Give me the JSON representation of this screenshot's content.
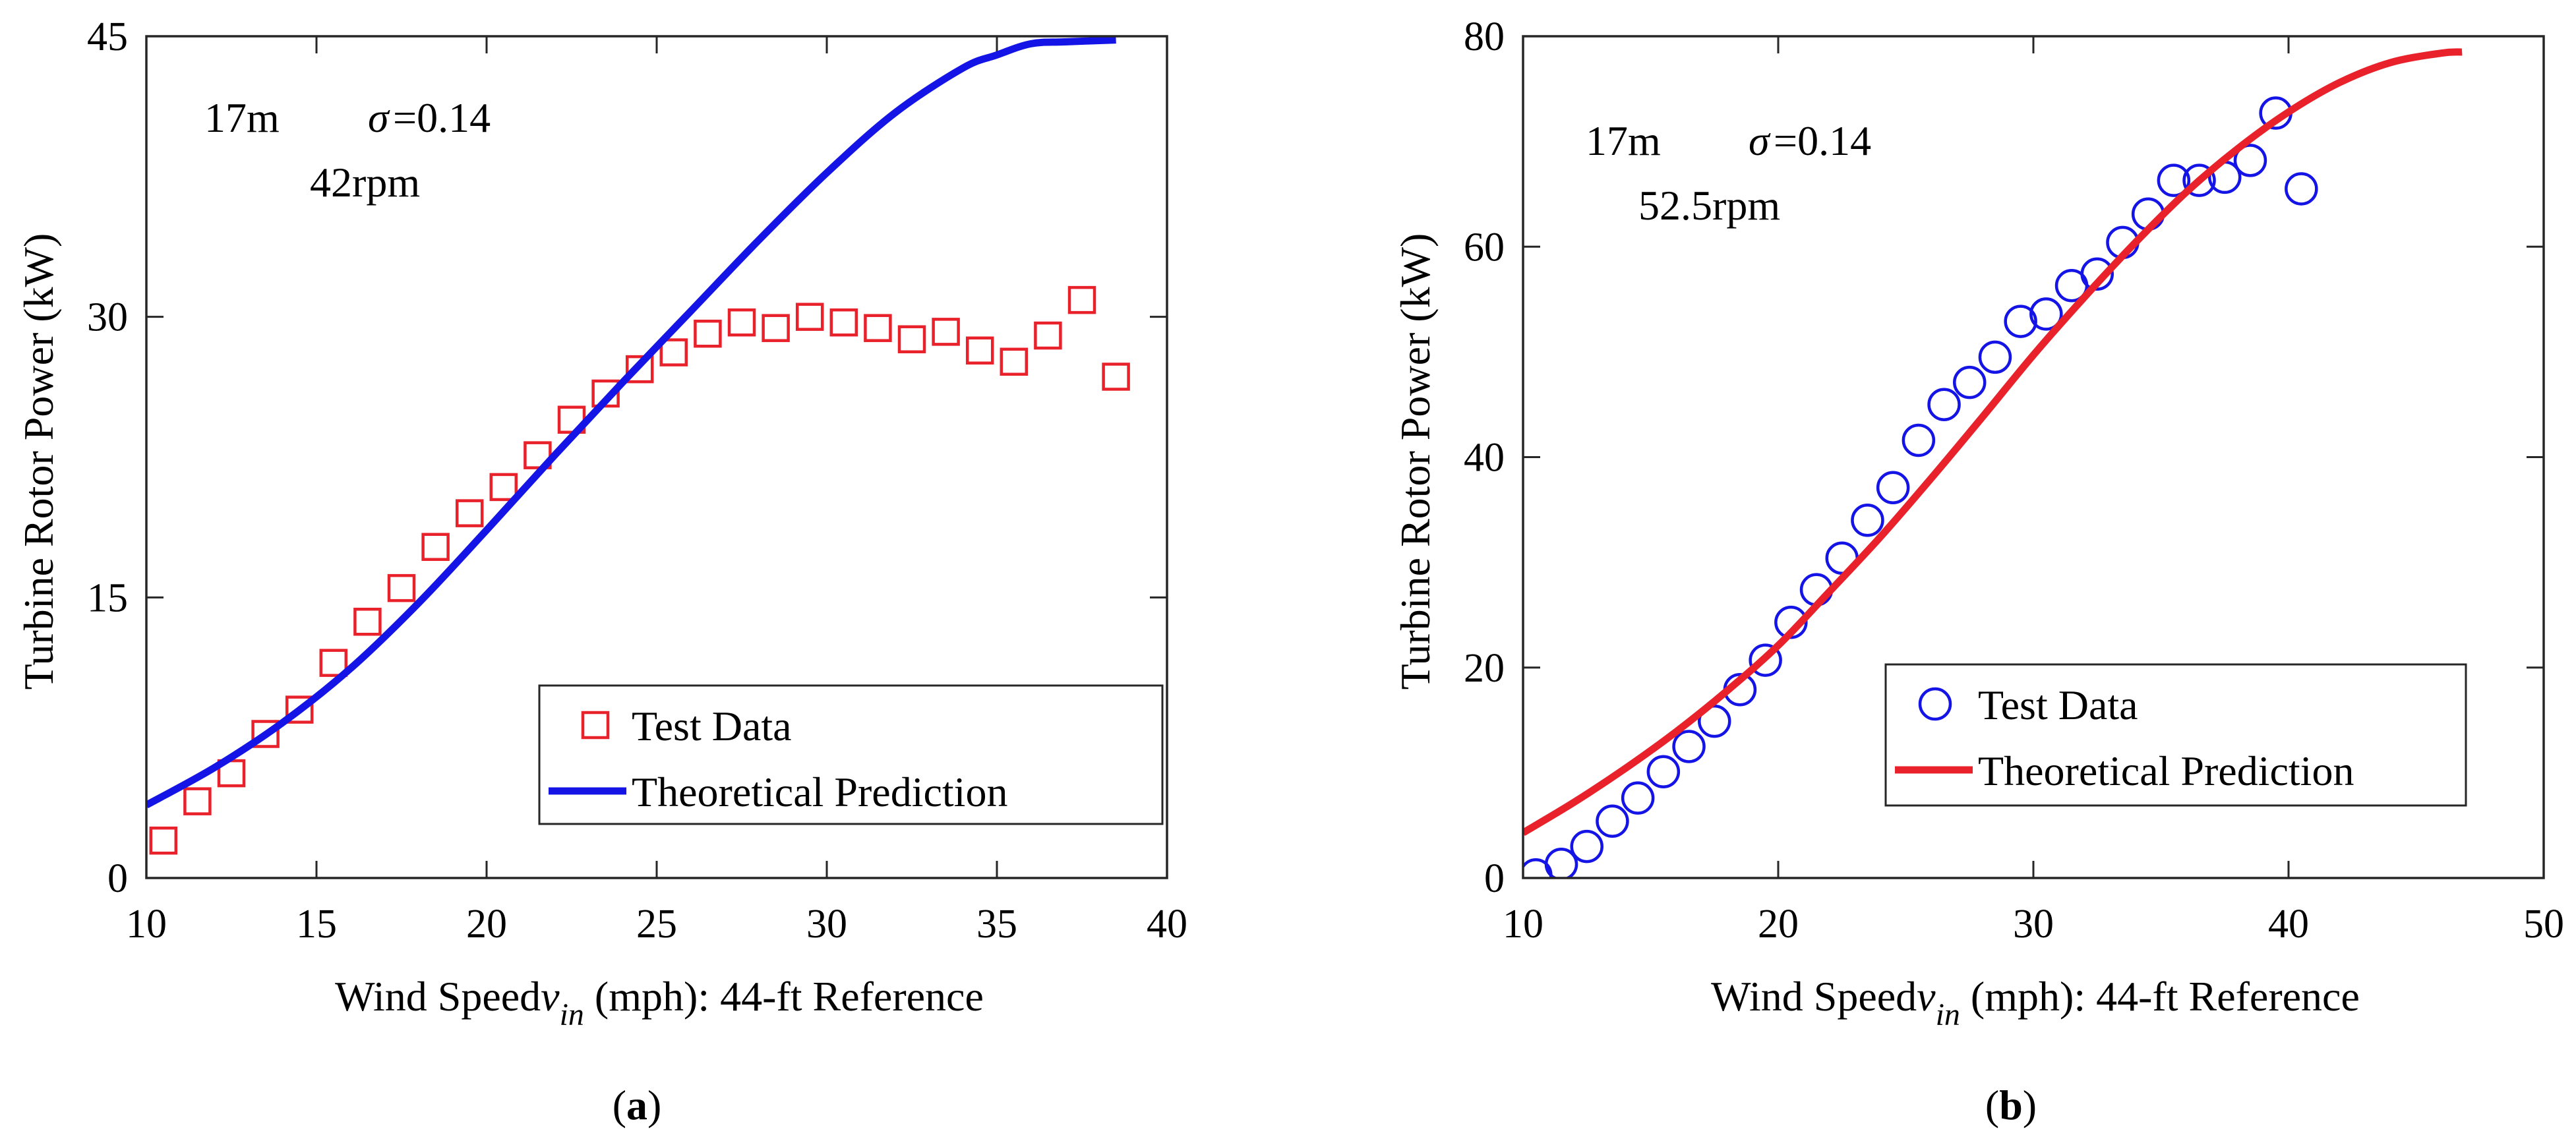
{
  "chart_data": [
    {
      "type": "scatter",
      "panel_label": "a",
      "xlabel_prefix": "Wind Speed",
      "xlabel_var": "v",
      "xlabel_sub": "in",
      "xlabel_suffix": " (mph): 44-ft Reference",
      "ylabel": "Turbine Rotor Power (kW)",
      "xlim": [
        10,
        40
      ],
      "ylim": [
        0,
        45
      ],
      "xticks": [
        10,
        15,
        20,
        25,
        30,
        35,
        40
      ],
      "yticks": [
        0,
        15,
        30,
        45
      ],
      "annotations": {
        "diameter": "17m",
        "sigma_symbol": "σ",
        "sigma_value": "=0.14",
        "rpm": "42rpm"
      },
      "legend": {
        "position": "bottom-right",
        "entries": [
          "Test Data",
          "Theoretical Prediction"
        ]
      },
      "series": [
        {
          "name": "Test Data",
          "kind": "markers",
          "marker": "square",
          "color": "#e8212b",
          "x": [
            10.5,
            11.5,
            12.5,
            13.5,
            14.5,
            15.5,
            16.5,
            17.5,
            18.5,
            19.5,
            20.5,
            21.5,
            22.5,
            23.5,
            24.5,
            25.5,
            26.5,
            27.5,
            28.5,
            29.5,
            30.5,
            31.5,
            32.5,
            33.5,
            34.5,
            35.5,
            36.5,
            37.5,
            38.5
          ],
          "y": [
            2.0,
            4.1,
            5.6,
            7.7,
            9.0,
            11.5,
            13.7,
            15.5,
            17.7,
            19.5,
            20.9,
            22.6,
            24.5,
            25.9,
            27.2,
            28.1,
            29.1,
            29.7,
            29.4,
            30.0,
            29.7,
            29.4,
            28.8,
            29.2,
            28.2,
            27.6,
            29.0,
            30.9,
            26.8
          ]
        },
        {
          "name": "Theoretical Prediction",
          "kind": "line",
          "color": "#1414e6",
          "x": [
            10,
            12,
            14,
            16,
            18,
            20,
            22,
            24,
            26,
            28,
            30,
            32,
            34,
            35,
            36,
            37,
            38.5
          ],
          "y": [
            3.9,
            5.9,
            8.3,
            11.2,
            14.7,
            18.6,
            22.6,
            26.5,
            30.3,
            34.1,
            37.7,
            40.9,
            43.3,
            44.0,
            44.6,
            44.7,
            44.8
          ]
        }
      ]
    },
    {
      "type": "scatter",
      "panel_label": "b",
      "xlabel_prefix": "Wind Speed",
      "xlabel_var": "v",
      "xlabel_sub": "in",
      "xlabel_suffix": " (mph): 44-ft Reference",
      "ylabel": "Turbine Rotor Power (kW)",
      "xlim": [
        10,
        50
      ],
      "ylim": [
        0,
        80
      ],
      "xticks": [
        10,
        20,
        30,
        40,
        50
      ],
      "yticks": [
        0,
        20,
        40,
        60,
        80
      ],
      "annotations": {
        "diameter": "17m",
        "sigma_symbol": "σ",
        "sigma_value": "=0.14",
        "rpm": "52.5rpm"
      },
      "legend": {
        "position": "bottom-right",
        "entries": [
          "Test Data",
          "Theoretical Prediction"
        ]
      },
      "series": [
        {
          "name": "Test Data",
          "kind": "markers",
          "marker": "circle",
          "color": "#1414e6",
          "x": [
            10.5,
            11.5,
            12.5,
            13.5,
            14.5,
            15.5,
            16.5,
            17.5,
            18.5,
            19.5,
            20.5,
            21.5,
            22.5,
            23.5,
            24.5,
            25.5,
            26.5,
            27.5,
            28.5,
            29.5,
            30.5,
            31.5,
            32.5,
            33.5,
            34.5,
            35.5,
            36.5,
            37.5,
            38.5,
            39.5,
            40.5
          ],
          "y": [
            0.3,
            1.3,
            3.0,
            5.4,
            7.6,
            10.1,
            12.5,
            14.9,
            17.9,
            20.7,
            24.3,
            27.4,
            30.4,
            34.0,
            37.1,
            41.6,
            45.0,
            47.1,
            49.5,
            52.9,
            53.6,
            56.3,
            57.4,
            60.4,
            63.1,
            66.3,
            66.3,
            66.6,
            68.2,
            72.7,
            65.5
          ]
        },
        {
          "name": "Theoretical Prediction",
          "kind": "line",
          "color": "#e8212b",
          "x": [
            10,
            12,
            14,
            16,
            18,
            20,
            22,
            24,
            26,
            28,
            30,
            32,
            34,
            36,
            38,
            40,
            42,
            44,
            46,
            46.8
          ],
          "y": [
            4.3,
            7.2,
            10.4,
            13.9,
            17.8,
            22.1,
            27.2,
            32.4,
            38.0,
            43.8,
            49.7,
            55.2,
            60.4,
            65.2,
            69.3,
            72.8,
            75.6,
            77.5,
            78.4,
            78.5
          ]
        }
      ]
    }
  ]
}
